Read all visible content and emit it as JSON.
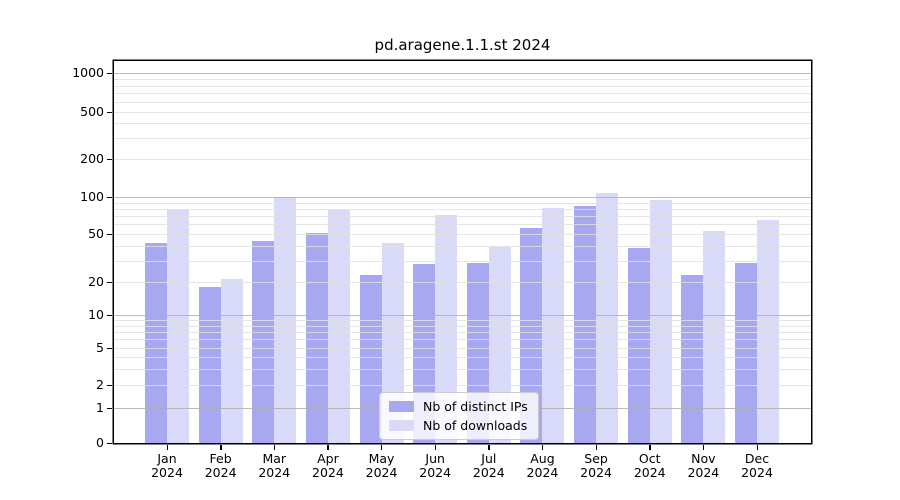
{
  "title": "pd.aragene.1.1.st 2024",
  "colors": {
    "distinct_ips": "#a8a8f0",
    "downloads": "#d9d9f8",
    "grid_minor": "#e1e1e1",
    "grid_major": "#afafaf",
    "spine": "#000000",
    "legend_border": "#cccccc"
  },
  "axes": {
    "y_ticks": [
      0,
      1,
      2,
      5,
      10,
      20,
      50,
      100,
      200,
      500,
      1000
    ],
    "y_tick_labels": [
      "0",
      "1",
      "2",
      "5",
      "10",
      "20",
      "50",
      "100",
      "200",
      "500",
      "1000"
    ],
    "x_months": [
      "Jan",
      "Feb",
      "Mar",
      "Apr",
      "May",
      "Jun",
      "Jul",
      "Aug",
      "Sep",
      "Oct",
      "Nov",
      "Dec"
    ],
    "x_year": "2024"
  },
  "legend": {
    "items": [
      {
        "label": "Nb of distinct IPs",
        "color_key": "distinct_ips"
      },
      {
        "label": "Nb of downloads",
        "color_key": "downloads"
      }
    ]
  },
  "chart_data": {
    "type": "bar",
    "title": "pd.aragene.1.1.st 2024",
    "categories": [
      "Jan 2024",
      "Feb 2024",
      "Mar 2024",
      "Apr 2024",
      "May 2024",
      "Jun 2024",
      "Jul 2024",
      "Aug 2024",
      "Sep 2024",
      "Oct 2024",
      "Nov 2024",
      "Dec 2024"
    ],
    "series": [
      {
        "name": "Nb of distinct IPs",
        "color": "#a8a8f0",
        "values": [
          42,
          18,
          44,
          51,
          23,
          28,
          29,
          56,
          84,
          38,
          23,
          29
        ]
      },
      {
        "name": "Nb of downloads",
        "color": "#d9d9f8",
        "values": [
          79,
          21,
          100,
          78,
          42,
          72,
          39,
          81,
          108,
          94,
          53,
          65
        ]
      }
    ],
    "yscale": "symlog",
    "yticks": [
      0,
      1,
      2,
      5,
      10,
      20,
      50,
      100,
      200,
      500,
      1000
    ],
    "ylim": [
      0,
      1300
    ],
    "xlabel": "",
    "ylabel": "",
    "grid": true,
    "grid_above_bars": true,
    "legend_position": "lower center"
  }
}
